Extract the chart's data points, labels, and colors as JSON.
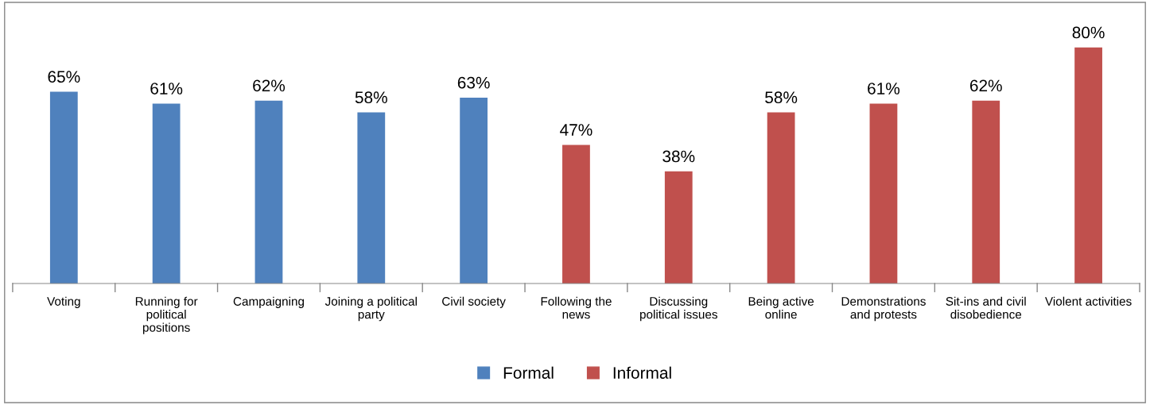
{
  "chart_data": {
    "type": "bar",
    "categories": [
      "Voting",
      "Running for\npolitical\npositions",
      "Campaigning",
      "Joining a political\nparty",
      "Civil society",
      "Following the\nnews",
      "Discussing\npolitical issues",
      "Being active\nonline",
      "Demonstrations\nand protests",
      "Sit-ins and civil\ndisobedience",
      "Violent activities"
    ],
    "series": [
      {
        "name": "Formal",
        "color": "#4f81bd",
        "values": [
          65,
          61,
          62,
          58,
          63,
          null,
          null,
          null,
          null,
          null,
          null
        ],
        "value_labels": [
          "65%",
          "61%",
          "62%",
          "58%",
          "63%",
          null,
          null,
          null,
          null,
          null,
          null
        ]
      },
      {
        "name": "Informal",
        "color": "#c0504d",
        "values": [
          null,
          null,
          null,
          null,
          null,
          47,
          38,
          58,
          61,
          62,
          80
        ],
        "value_labels": [
          null,
          null,
          null,
          null,
          null,
          "47%",
          "38%",
          "58%",
          "61%",
          "62%",
          "80%"
        ]
      }
    ],
    "grid": false,
    "legend": "bottom"
  }
}
